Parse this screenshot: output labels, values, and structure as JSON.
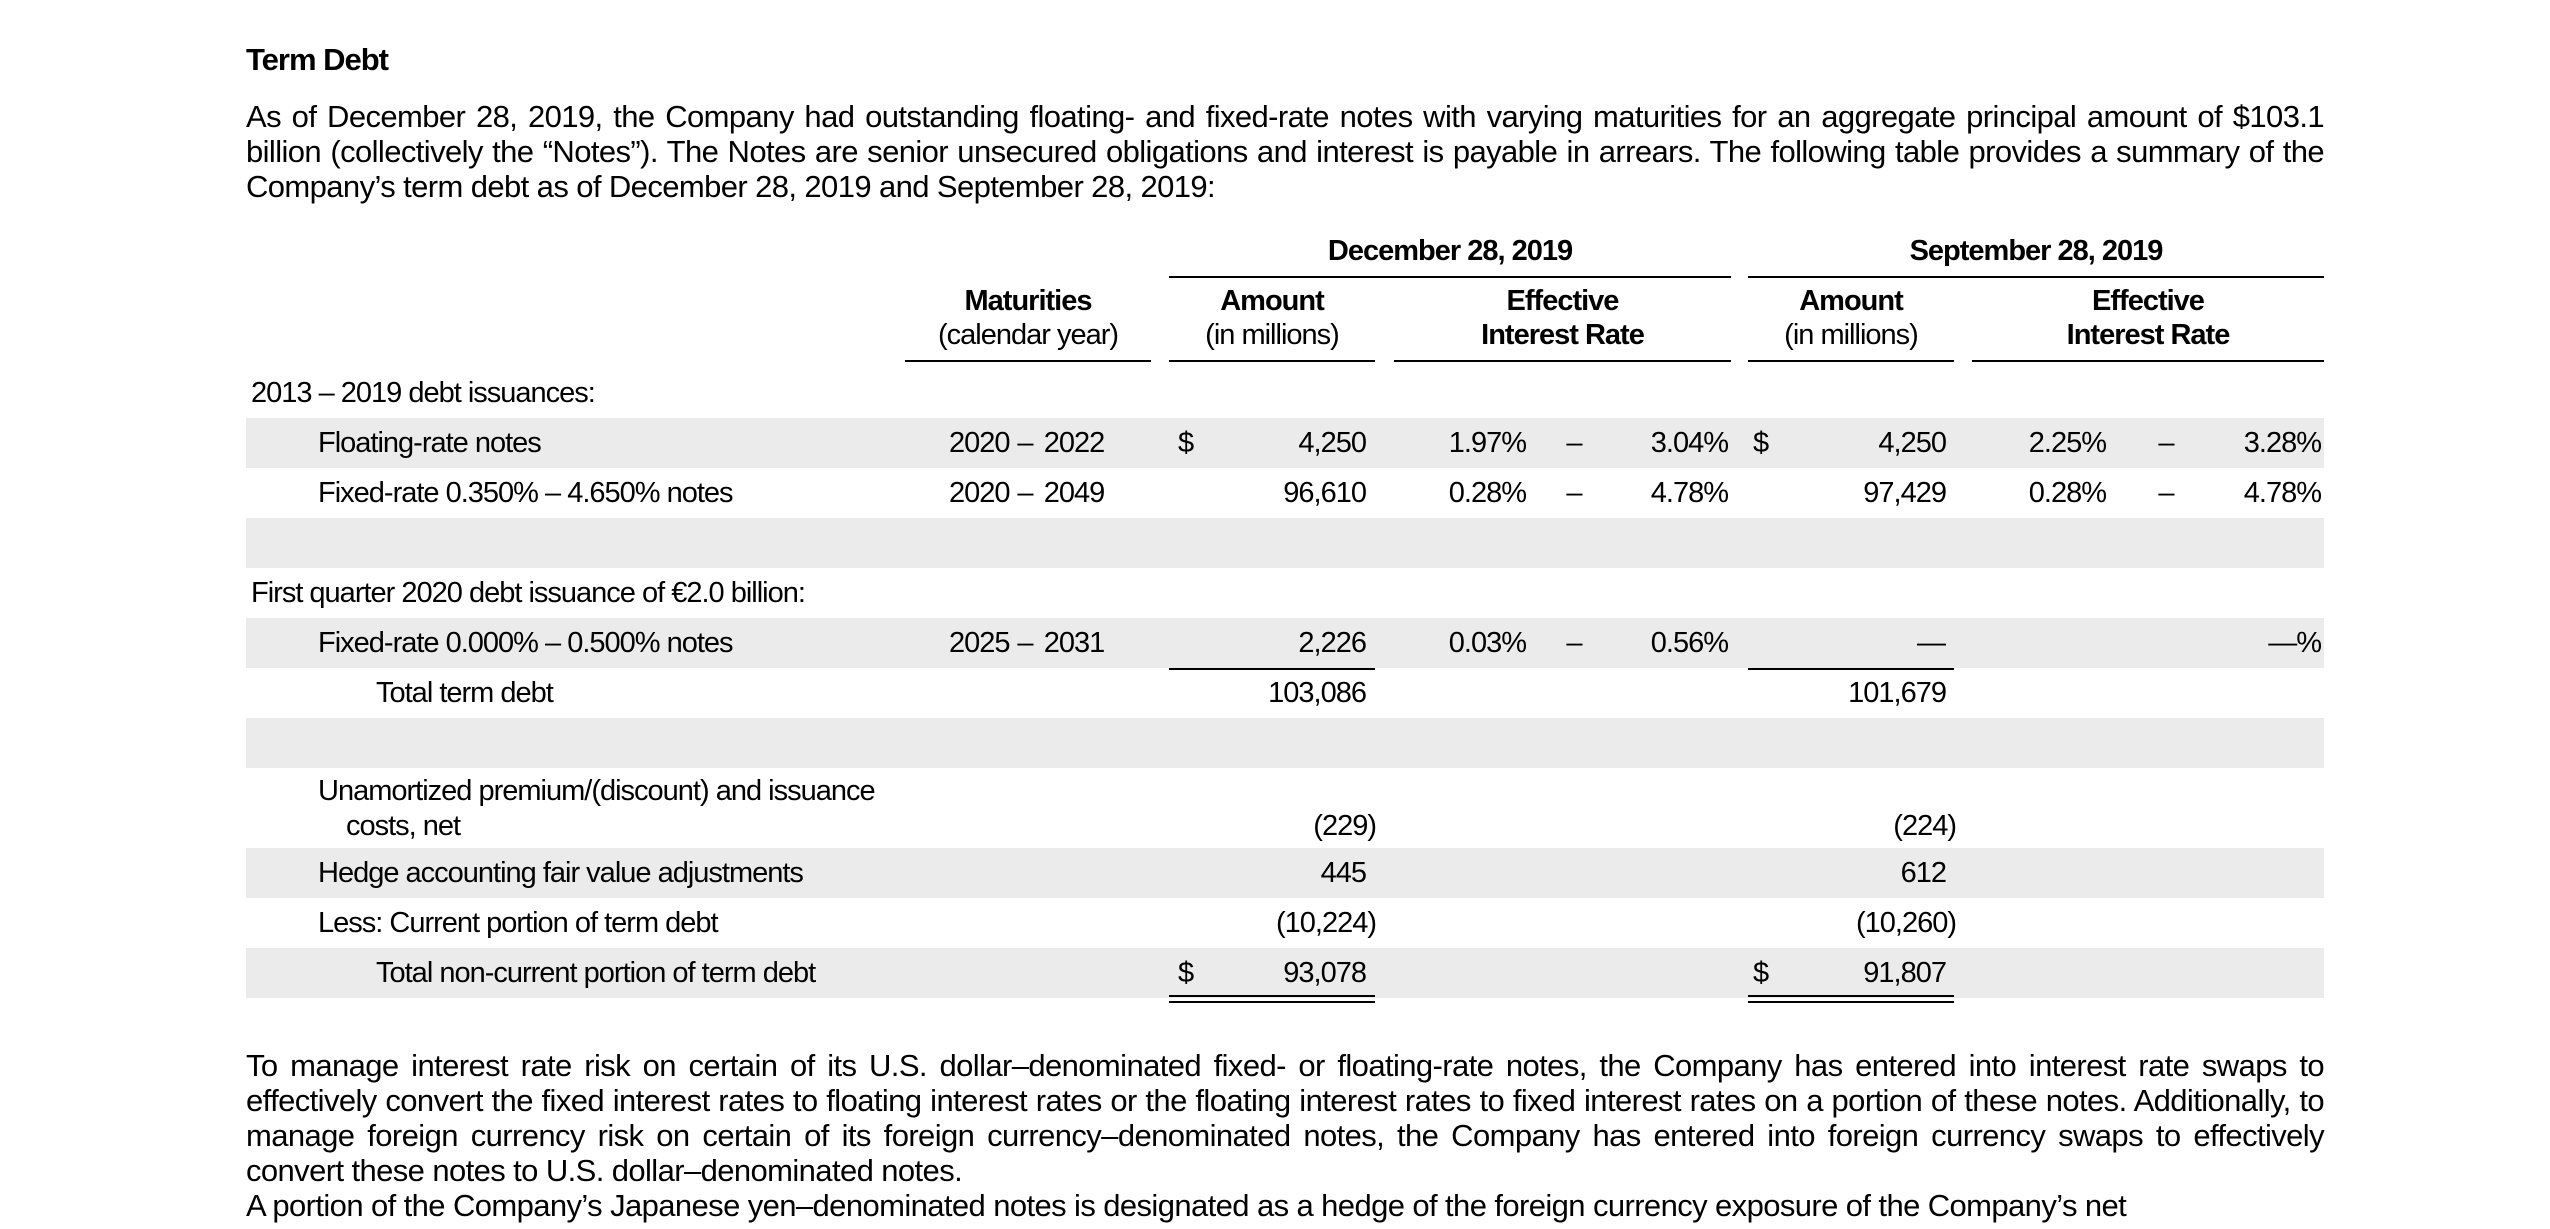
{
  "heading": "Term Debt",
  "intro_paragraph": "As of December 28, 2019, the Company had outstanding floating- and fixed-rate notes with varying maturities for an aggregate principal amount of $103.1 billion (collectively the “Notes”). The Notes are senior unsecured obligations and interest is payable in arrears. The following table provides a summary of the Company’s term debt as of December 28, 2019 and September 28, 2019:",
  "table": {
    "period1": "December 28, 2019",
    "period2": "September 28, 2019",
    "col_maturities_1": "Maturities",
    "col_maturities_2": "(calendar year)",
    "col_amount_1": "Amount",
    "col_amount_2": "(in millions)",
    "col_rate_1": "Effective",
    "col_rate_2": "Interest Rate",
    "section1": "2013 – 2019 debt issuances:",
    "floating": {
      "label": "Floating-rate notes",
      "mat_from": "2020",
      "mat_dash": "–",
      "mat_to": "2022",
      "d1": "$",
      "amt1": "4,250",
      "rate1_lo": "1.97%",
      "rate1_dash": "–",
      "rate1_hi": "3.04%",
      "d2": "$",
      "amt2": "4,250",
      "rate2_lo": "2.25%",
      "rate2_dash": "–",
      "rate2_hi": "3.28%"
    },
    "fixed1": {
      "label": "Fixed-rate 0.350% – 4.650% notes",
      "mat_from": "2020",
      "mat_dash": "–",
      "mat_to": "2049",
      "amt1": "96,610",
      "rate1_lo": "0.28%",
      "rate1_dash": "–",
      "rate1_hi": "4.78%",
      "amt2": "97,429",
      "rate2_lo": "0.28%",
      "rate2_dash": "–",
      "rate2_hi": "4.78%"
    },
    "section2": "First quarter 2020 debt issuance of €2.0 billion:",
    "fixed2": {
      "label": "Fixed-rate 0.000% – 0.500% notes",
      "mat_from": "2025",
      "mat_dash": "–",
      "mat_to": "2031",
      "amt1": "2,226",
      "rate1_lo": "0.03%",
      "rate1_dash": "–",
      "rate1_hi": "0.56%",
      "amt2": "—",
      "rate2": "—%"
    },
    "total": {
      "label": "Total term debt",
      "amt1": "103,086",
      "amt2": "101,679"
    },
    "unamortized": {
      "label_1": "Unamortized premium/(discount) and issuance",
      "label_2": "costs, net",
      "amt1": "(229)",
      "amt2": "(224)"
    },
    "hedge": {
      "label": "Hedge accounting fair value adjustments",
      "amt1": "445",
      "amt2": "612"
    },
    "current": {
      "label": "Less: Current portion of term debt",
      "amt1": "(10,224)",
      "amt2": "(10,260)"
    },
    "noncurrent": {
      "label": "Total non-current portion of term debt",
      "d1": "$",
      "amt1": "93,078",
      "d2": "$",
      "amt2": "91,807"
    }
  },
  "swap_paragraph": "To manage interest rate risk on certain of its U.S. dollar–denominated fixed- or floating-rate notes, the Company has entered into interest rate swaps to effectively convert the fixed interest rates to floating interest rates or the floating interest rates to fixed interest rates on a portion of these notes. Additionally, to manage foreign currency risk on certain of its foreign currency–denominated notes, the Company has entered into foreign currency swaps to effectively convert these notes to U.S. dollar–denominated notes.",
  "cut_paragraph": "A portion of the Company’s Japanese yen–denominated notes is designated as a hedge of the foreign currency exposure of the Company’s net"
}
